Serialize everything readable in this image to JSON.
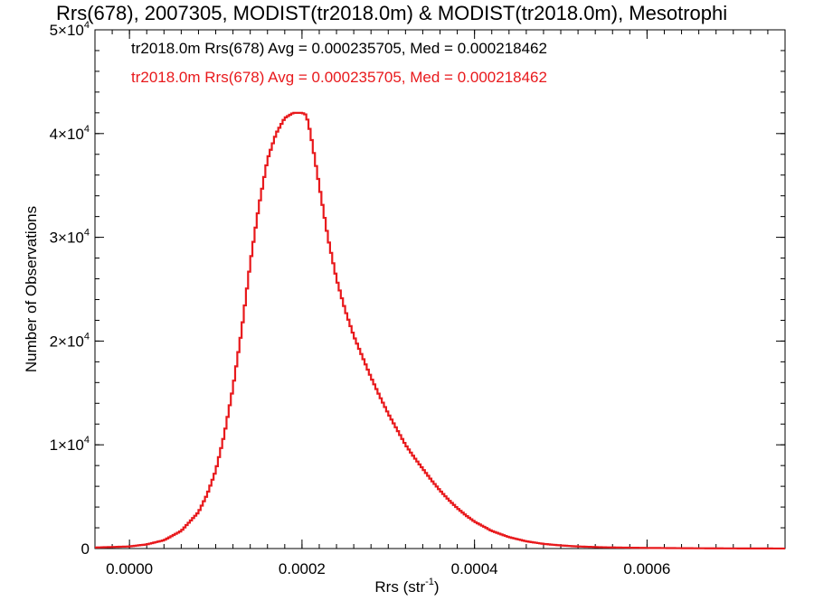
{
  "chart_data": {
    "type": "line",
    "drawstyle": "steps",
    "title": "Rrs(678), 2007305, MODIST(tr2018.0m) & MODIST(tr2018.0m), Mesotrophi",
    "xlabel_base": "Rrs (str",
    "xlabel_exp": "-1",
    "xlabel_end": ")",
    "ylabel": "Number of Observations",
    "xlim": [
      -4e-05,
      0.00076
    ],
    "ylim": [
      0,
      50000
    ],
    "xticks": [
      0.0,
      0.0002,
      0.0004,
      0.0006
    ],
    "xtick_labels": [
      "0.0000",
      "0.0002",
      "0.0004",
      "0.0006"
    ],
    "yticks": [
      0,
      10000,
      20000,
      30000,
      40000,
      50000
    ],
    "ytick_labels": [
      {
        "base": "0",
        "exp": ""
      },
      {
        "base": "1×10",
        "exp": "4"
      },
      {
        "base": "2×10",
        "exp": "4"
      },
      {
        "base": "3×10",
        "exp": "4"
      },
      {
        "base": "4×10",
        "exp": "4"
      },
      {
        "base": "5×10",
        "exp": "4"
      }
    ],
    "grid": false,
    "legend": [
      {
        "text": "tr2018.0m Rrs(678) Avg = 0.000235705, Med = 0.000218462",
        "color": "#000000"
      },
      {
        "text": "tr2018.0m Rrs(678) Avg = 0.000235705, Med = 0.000218462",
        "color": "#e8191c"
      }
    ],
    "series": [
      {
        "color": "#e8191c",
        "x": [
          -4e-05,
          0.0,
          2e-05,
          4e-05,
          6e-05,
          8e-05,
          9e-05,
          0.0001,
          0.00011,
          0.00012,
          0.00013,
          0.00014,
          0.00015,
          0.00016,
          0.00017,
          0.00018,
          0.00019,
          0.0002,
          0.000205,
          0.00021,
          0.00022,
          0.00023,
          0.00024,
          0.00025,
          0.00026,
          0.00027,
          0.00028,
          0.00029,
          0.0003,
          0.00031,
          0.00032,
          0.00033,
          0.00034,
          0.00035,
          0.00036,
          0.00037,
          0.00038,
          0.00039,
          0.0004,
          0.00042,
          0.00044,
          0.00046,
          0.00048,
          0.0005,
          0.00052,
          0.00055,
          0.0006,
          0.00065,
          0.0007,
          0.00076
        ],
        "values": [
          100,
          200,
          400,
          800,
          1700,
          3500,
          5200,
          7500,
          11000,
          15500,
          21000,
          27500,
          33000,
          37500,
          40000,
          41500,
          42000,
          42000,
          41800,
          40000,
          35000,
          30000,
          26000,
          23000,
          20500,
          18500,
          16500,
          14700,
          13000,
          11500,
          10000,
          8800,
          7700,
          6600,
          5600,
          4700,
          3900,
          3200,
          2600,
          1700,
          1100,
          700,
          450,
          300,
          200,
          120,
          60,
          30,
          15,
          5
        ]
      }
    ]
  }
}
